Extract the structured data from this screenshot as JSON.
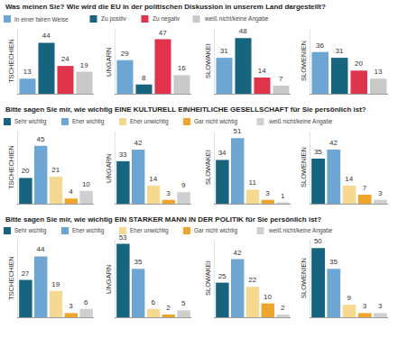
{
  "chart_data": [
    {
      "type": "bar",
      "title": "Was meinen Sie? Wie wird die EU in der politischen Diskussion in unserem Land dargestellt?",
      "categories": [
        "TSCHECHIEN",
        "UNGARN",
        "SLOWAKEI",
        "SLOWENIEN"
      ],
      "series": [
        {
          "name": "In einer fairen Weise",
          "color": "#6ea6d3",
          "values": [
            13,
            29,
            31,
            36
          ]
        },
        {
          "name": "Zu positiv",
          "color": "#17647f",
          "values": [
            44,
            8,
            48,
            31
          ]
        },
        {
          "name": "Zu negativ",
          "color": "#e0334c",
          "values": [
            24,
            47,
            14,
            20
          ]
        },
        {
          "name": "weiß nicht/keine Angabe",
          "color": "#c9c9c9",
          "values": [
            19,
            16,
            7,
            13
          ]
        }
      ],
      "ylim": [
        0,
        56
      ],
      "tick_labels": false,
      "data_labels": true
    },
    {
      "type": "bar",
      "title": "Bitte sagen Sie mir, wie wichtig EINE KULTURELL EINHEITLICHE GESELLSCHAFT für Sie persönlich ist?",
      "categories": [
        "TSCHECHIEN",
        "UNGARN",
        "SLOWAKEI",
        "SLOWENIEN"
      ],
      "series": [
        {
          "name": "Sehr wichtig",
          "color": "#17647f",
          "values": [
            20,
            33,
            34,
            35
          ]
        },
        {
          "name": "Eher wichtig",
          "color": "#6ea6d3",
          "values": [
            45,
            42,
            51,
            42
          ]
        },
        {
          "name": "Eher unwichtig",
          "color": "#f6d991",
          "values": [
            21,
            14,
            11,
            14
          ]
        },
        {
          "name": "Gar nicht wichtig",
          "color": "#efa52b",
          "values": [
            4,
            3,
            3,
            7
          ]
        },
        {
          "name": "weiß nicht/keine Angabe",
          "color": "#cfcfcf",
          "values": [
            10,
            9,
            1,
            3
          ]
        }
      ],
      "ylim": [
        0,
        56
      ],
      "tick_labels": false,
      "data_labels": true
    },
    {
      "type": "bar",
      "title": "Bitte sagen Sie mir, wie wichtig EIN STARKER MANN IN DER POLITIK für Sie persönlich ist?",
      "categories": [
        "TSCHECHIEN",
        "UNGARN",
        "SLOWAKEI",
        "SLOWENIEN"
      ],
      "series": [
        {
          "name": "Sehr wichtig",
          "color": "#17647f",
          "values": [
            27,
            53,
            25,
            50
          ]
        },
        {
          "name": "Eher wichtig",
          "color": "#6ea6d3",
          "values": [
            44,
            35,
            42,
            35
          ]
        },
        {
          "name": "Eher unwichtig",
          "color": "#f6d991",
          "values": [
            19,
            6,
            22,
            9
          ]
        },
        {
          "name": "Gar nicht wichtig",
          "color": "#efa52b",
          "values": [
            3,
            2,
            10,
            3
          ]
        },
        {
          "name": "weiß nicht/keine Angabe",
          "color": "#cfcfcf",
          "values": [
            6,
            5,
            2,
            3
          ]
        }
      ],
      "ylim": [
        0,
        56
      ],
      "tick_labels": false,
      "data_labels": true
    }
  ]
}
